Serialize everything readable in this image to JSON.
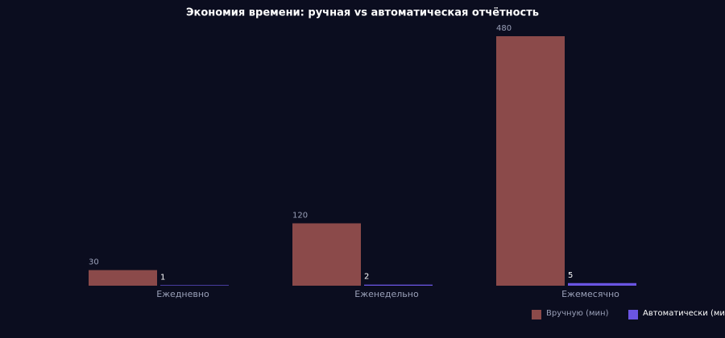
{
  "chart_data": {
    "type": "bar",
    "title": "Экономия времени: ручная vs автоматическая отчётность",
    "categories": [
      "Ежедневно",
      "Еженедельно",
      "Ежемесячно"
    ],
    "series": [
      {
        "name": "Вручную (мин)",
        "color": "#8b4a4a",
        "values": [
          30,
          120,
          480
        ]
      },
      {
        "name": "Автоматически (мин)",
        "color": "#6b55e3",
        "values": [
          1,
          2,
          5
        ]
      }
    ],
    "legend": "bottom-right"
  }
}
